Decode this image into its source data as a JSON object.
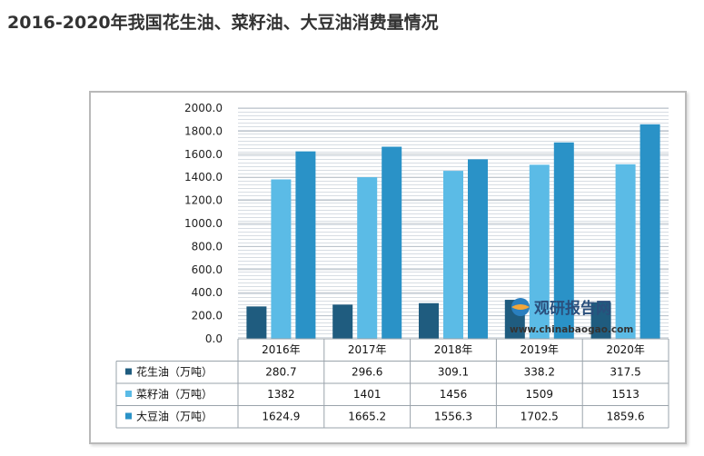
{
  "page": {
    "title": "2016-2020年我国花生油、菜籽油、大豆油消费量情况"
  },
  "watermark": {
    "brand": "观研报告网",
    "url": "www.chinabaogao.com",
    "icon": "globe-logo-icon"
  },
  "chart_data": {
    "type": "bar",
    "title": "",
    "categories": [
      "2016年",
      "2017年",
      "2018年",
      "2019年",
      "2020年"
    ],
    "ylim": [
      0,
      2000
    ],
    "yticks": [
      "0.0",
      "200.0",
      "400.0",
      "600.0",
      "800.0",
      "1000.0",
      "1200.0",
      "1400.0",
      "1600.0",
      "1800.0",
      "2000.0"
    ],
    "grid": true,
    "legend": "data-table-left",
    "series": [
      {
        "name": "花生油（万吨）",
        "color": "#1f5c7f",
        "values": [
          280.7,
          296.6,
          309.1,
          338.2,
          317.5
        ],
        "labels": [
          "280.7",
          "296.6",
          "309.1",
          "338.2",
          "317.5"
        ]
      },
      {
        "name": "菜籽油（万吨）",
        "color": "#5bbbe6",
        "values": [
          1382,
          1401,
          1456,
          1509,
          1513
        ],
        "labels": [
          "1382",
          "1401",
          "1456",
          "1509",
          "1513"
        ]
      },
      {
        "name": "大豆油（万吨）",
        "color": "#2a92c7",
        "values": [
          1624.9,
          1665.2,
          1556.3,
          1702.5,
          1859.6
        ],
        "labels": [
          "1624.9",
          "1665.2",
          "1556.3",
          "1702.5",
          "1859.6"
        ]
      }
    ]
  }
}
